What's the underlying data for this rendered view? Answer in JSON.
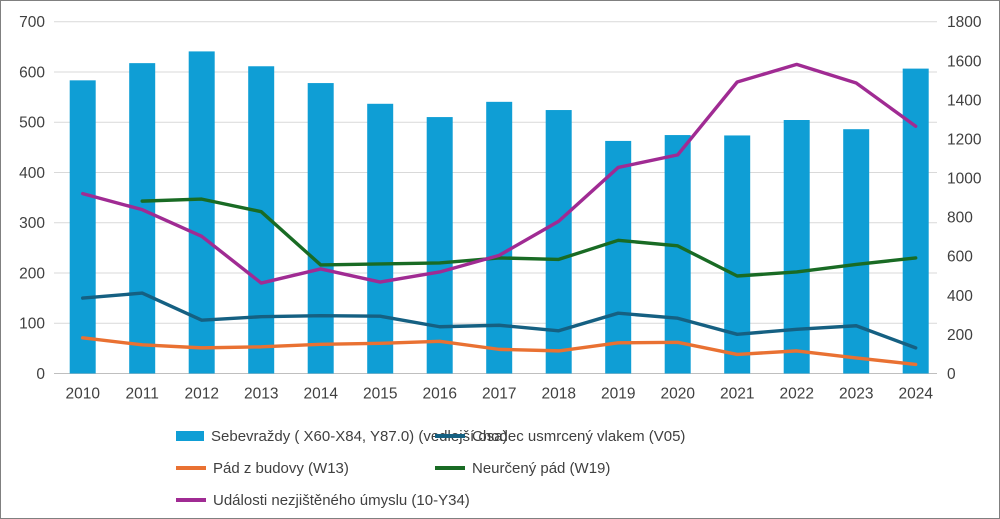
{
  "chart_data": {
    "type": "bar+line combo",
    "title": "",
    "categories": [
      "2010",
      "2011",
      "2012",
      "2013",
      "2014",
      "2015",
      "2016",
      "2017",
      "2018",
      "2019",
      "2020",
      "2021",
      "2022",
      "2023",
      "2024"
    ],
    "left_axis": {
      "min": 0,
      "max": 700,
      "step": 100
    },
    "right_axis": {
      "min": 0,
      "max": 1800,
      "step": 200
    },
    "grid": true,
    "legend_position": "bottom",
    "bar_series": {
      "name": "Sebevraždy ( X60-X84, Y87.0) (vedlejší osa)",
      "axis": "right",
      "color": "#0F9ED5",
      "values": [
        1500,
        1588,
        1648,
        1572,
        1486,
        1380,
        1312,
        1390,
        1348,
        1190,
        1220,
        1218,
        1297,
        1250,
        1560
      ]
    },
    "line_series": [
      {
        "name": "Chodec usmrcený vlakem (V05)",
        "axis": "left",
        "color": "#156082",
        "values": [
          150,
          160,
          106,
          113,
          115,
          114,
          93,
          96,
          85,
          120,
          110,
          78,
          88,
          95,
          51
        ]
      },
      {
        "name": "Pád z budovy (W13)",
        "axis": "left",
        "color": "#E97132",
        "values": [
          71,
          57,
          51,
          53,
          58,
          60,
          64,
          48,
          45,
          61,
          62,
          38,
          45,
          31,
          18
        ]
      },
      {
        "name": "Neurčený pád (W19)",
        "axis": "left",
        "color": "#196B24",
        "values": [
          null,
          343,
          347,
          322,
          216,
          218,
          220,
          230,
          227,
          265,
          254,
          194,
          202,
          217,
          230
        ]
      },
      {
        "name": "Události nezjištěného úmyslu (10-Y34)",
        "axis": "left",
        "color": "#A02B93",
        "values": [
          358,
          326,
          273,
          180,
          208,
          182,
          202,
          235,
          303,
          410,
          435,
          580,
          615,
          578,
          492
        ]
      }
    ],
    "colors": {
      "gridline": "#D9D9D9",
      "axis_line": "#BFBFBF",
      "tick_text": "#404040"
    }
  }
}
